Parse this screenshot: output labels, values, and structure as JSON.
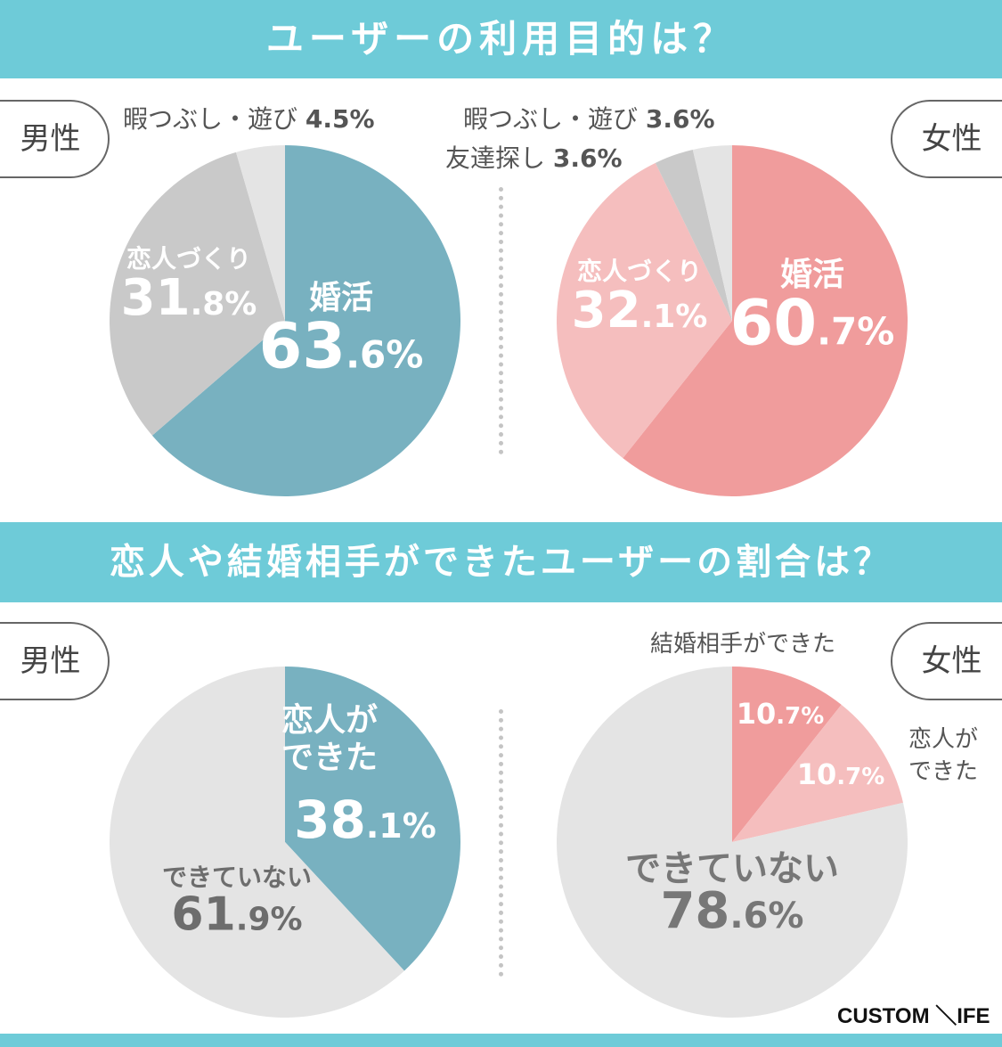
{
  "sections": [
    {
      "title": "ユーザーの利用目的は？"
    },
    {
      "title": "恋人や結婚相手ができたユーザーの割合は？"
    }
  ],
  "labels": {
    "male": "男性",
    "female": "女性"
  },
  "brand": "CUSTOM ＼IFE",
  "chart_data": [
    {
      "type": "pie",
      "section": 0,
      "group": "男性",
      "slices": [
        {
          "name": "婚活",
          "int": "63",
          "dec": ".6%",
          "value": 63.6,
          "color": "#78b1c0"
        },
        {
          "name": "恋人づくり",
          "int": "31",
          "dec": ".8%",
          "value": 31.8,
          "color": "#c9c9c9"
        },
        {
          "name": "暇つぶし・遊び",
          "text": "4.5%",
          "value": 4.5,
          "color": "#e4e4e4"
        }
      ]
    },
    {
      "type": "pie",
      "section": 0,
      "group": "女性",
      "slices": [
        {
          "name": "婚活",
          "int": "60",
          "dec": ".7%",
          "value": 60.7,
          "color": "#f09c9c"
        },
        {
          "name": "恋人づくり",
          "int": "32",
          "dec": ".1%",
          "value": 32.1,
          "color": "#f5bebe"
        },
        {
          "name": "友達探し",
          "text": "3.6%",
          "value": 3.6,
          "color": "#c9c9c9"
        },
        {
          "name": "暇つぶし・遊び",
          "text": "3.6%",
          "value": 3.6,
          "color": "#e4e4e4"
        }
      ]
    },
    {
      "type": "pie",
      "section": 1,
      "group": "男性",
      "slices": [
        {
          "name": "恋人ができた",
          "name_lines": [
            "恋人が",
            "できた"
          ],
          "int": "38",
          "dec": ".1%",
          "value": 38.1,
          "color": "#78b1c0"
        },
        {
          "name": "できていない",
          "int": "61",
          "dec": ".9%",
          "value": 61.9,
          "color": "#e4e4e4"
        }
      ]
    },
    {
      "type": "pie",
      "section": 1,
      "group": "女性",
      "slices": [
        {
          "name": "結婚相手ができた",
          "int": "10",
          "dec": ".7%",
          "value": 10.7,
          "color": "#f09c9c"
        },
        {
          "name": "恋人ができた",
          "name_lines": [
            "恋人が",
            "できた"
          ],
          "int": "10",
          "dec": ".7%",
          "value": 10.7,
          "color": "#f5bebe"
        },
        {
          "name": "できていない",
          "int": "78",
          "dec": ".6%",
          "value": 78.6,
          "color": "#e4e4e4"
        }
      ]
    }
  ]
}
